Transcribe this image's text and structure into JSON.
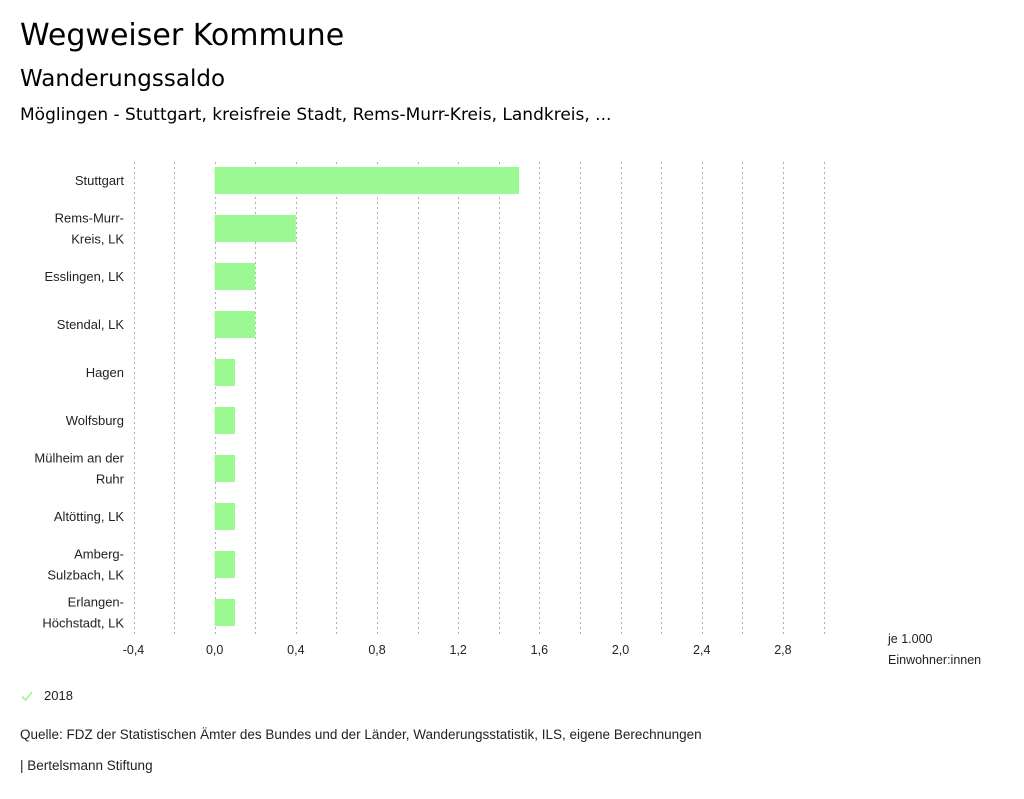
{
  "header": {
    "title": "Wegweiser Kommune",
    "subtitle": "Wanderungssaldo",
    "context": "Möglingen - Stuttgart, kreisfreie Stadt, Rems-Murr-Kreis, Landkreis, ..."
  },
  "colors": {
    "bar": "#9bf994",
    "grid": "#b0b0b0",
    "text": "#222222"
  },
  "chart_data": {
    "type": "bar",
    "orientation": "horizontal",
    "title": "Wanderungssaldo",
    "xlabel": "je 1.000 Einwohner:innen",
    "ylabel": "",
    "xlim": [
      -0.4,
      3.0
    ],
    "grid": true,
    "grid_style": "dashed vertical",
    "x_ticks": [
      -0.4,
      0.0,
      0.4,
      0.8,
      1.2,
      1.6,
      2.0,
      2.4,
      2.8
    ],
    "x_tick_labels": [
      "-0,4",
      "0,0",
      "0,4",
      "0,8",
      "1,2",
      "1,6",
      "2,0",
      "2,4",
      "2,8"
    ],
    "unit_label_lines": [
      "je 1.000",
      "Einwohner:innen"
    ],
    "categories": [
      [
        "Stuttgart"
      ],
      [
        "Rems-Murr-",
        "Kreis, LK"
      ],
      [
        "Esslingen, LK"
      ],
      [
        "Stendal, LK"
      ],
      [
        "Hagen"
      ],
      [
        "Wolfsburg"
      ],
      [
        "Mülheim an der",
        "Ruhr"
      ],
      [
        "Altötting, LK"
      ],
      [
        "Amberg-",
        "Sulzbach, LK"
      ],
      [
        "Erlangen-",
        "Höchstadt, LK"
      ]
    ],
    "series": [
      {
        "name": "2018",
        "values": [
          1.5,
          0.4,
          0.2,
          0.2,
          0.1,
          0.1,
          0.1,
          0.1,
          0.1,
          0.1
        ]
      }
    ],
    "legend": {
      "position": "bottom-left",
      "entries": [
        "2018"
      ]
    }
  },
  "legend": {
    "label": "2018",
    "icon": "check-icon"
  },
  "footer": {
    "source": "Quelle: FDZ der Statistischen Ämter des Bundes und der Länder, Wanderungsstatistik, ILS, eigene Berechnungen",
    "publisher": "| Bertelsmann Stiftung"
  }
}
